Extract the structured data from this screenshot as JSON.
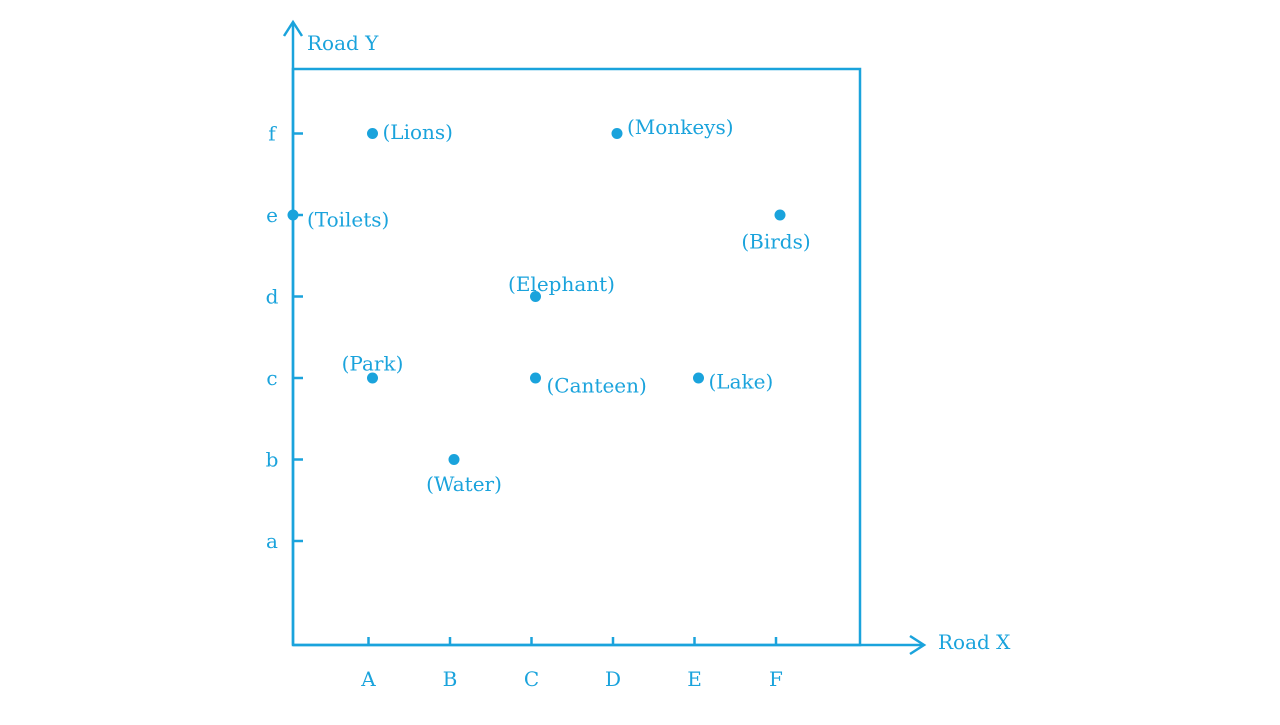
{
  "colors": {
    "ink": "#1aa3dc",
    "background": "#ffffff"
  },
  "axes": {
    "x_label": "Road X",
    "y_label": "Road Y",
    "x_ticks": [
      "A",
      "B",
      "C",
      "D",
      "E",
      "F"
    ],
    "y_ticks": [
      "a",
      "b",
      "c",
      "d",
      "e",
      "f"
    ]
  },
  "places": [
    {
      "name": "(Lions)",
      "x": 1,
      "y": 6
    },
    {
      "name": "(Monkeys)",
      "x": 4,
      "y": 6
    },
    {
      "name": "(Toilets)",
      "x": 0,
      "y": 5
    },
    {
      "name": "(Birds)",
      "x": 6,
      "y": 5
    },
    {
      "name": "(Elephant)",
      "x": 3,
      "y": 4
    },
    {
      "name": "(Park)",
      "x": 1,
      "y": 3
    },
    {
      "name": "(Canteen)",
      "x": 3,
      "y": 3
    },
    {
      "name": "(Lake)",
      "x": 5,
      "y": 3
    },
    {
      "name": "(Water)",
      "x": 2,
      "y": 2
    }
  ]
}
